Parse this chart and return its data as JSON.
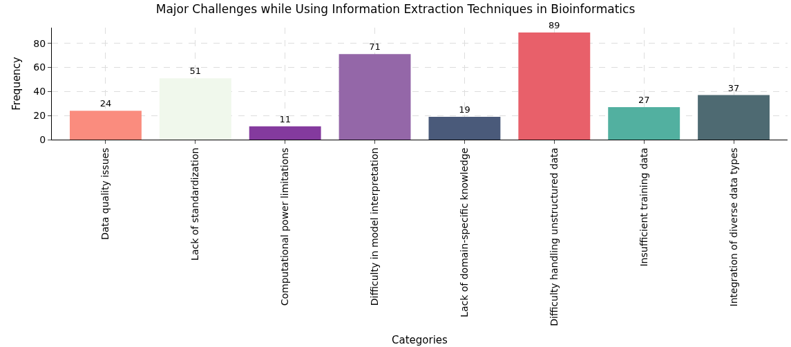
{
  "chart_data": {
    "type": "bar",
    "title": "Major Challenges while Using Information Extraction Techniques in Bioinformatics",
    "xlabel": "Categories",
    "ylabel": "Frequency",
    "categories": [
      "Data quality issues",
      "Lack of standardization",
      "Computational power limitations",
      "Difficulty in model interpretation",
      "Lack of domain-specific knowledge",
      "Difficulty handling unstructured data",
      "Insufficient training data",
      "Integration of diverse data types"
    ],
    "values": [
      24,
      51,
      11,
      71,
      19,
      89,
      27,
      37
    ],
    "colors": [
      "#fa8c7e",
      "#f0f8ec",
      "#843a9e",
      "#9467a8",
      "#4a5a7a",
      "#e8606a",
      "#52b0a0",
      "#4e6a72"
    ],
    "ylim": [
      0,
      93
    ],
    "yticks": [
      0,
      20,
      40,
      60,
      80
    ],
    "grid": true,
    "data_labels": true,
    "legend": false
  }
}
